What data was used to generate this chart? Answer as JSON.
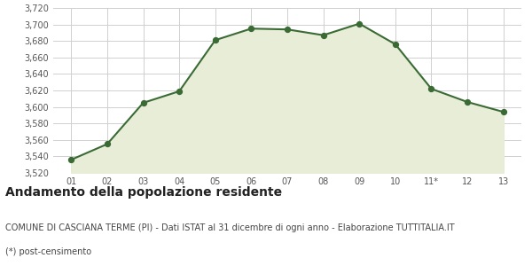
{
  "x_labels": [
    "01",
    "02",
    "03",
    "04",
    "05",
    "06",
    "07",
    "08",
    "09",
    "10",
    "11*",
    "12",
    "13"
  ],
  "x_values": [
    1,
    2,
    3,
    4,
    5,
    6,
    7,
    8,
    9,
    10,
    11,
    12,
    13
  ],
  "y_values": [
    3536,
    3555,
    3605,
    3619,
    3681,
    3695,
    3694,
    3687,
    3701,
    3676,
    3622,
    3606,
    3594
  ],
  "line_color": "#3a6b35",
  "fill_color": "#e8edd8",
  "marker_color": "#3a6b35",
  "bg_color": "#ffffff",
  "plot_bg_color": "#ffffff",
  "grid_color": "#d0d0d0",
  "ylim_min": 3520,
  "ylim_max": 3720,
  "ytick_step": 20,
  "title": "Andamento della popolazione residente",
  "subtitle": "COMUNE DI CASCIANA TERME (PI) - Dati ISTAT al 31 dicembre di ogni anno - Elaborazione TUTTITALIA.IT",
  "footnote": "(*) post-censimento",
  "title_fontsize": 10,
  "subtitle_fontsize": 7,
  "footnote_fontsize": 7
}
